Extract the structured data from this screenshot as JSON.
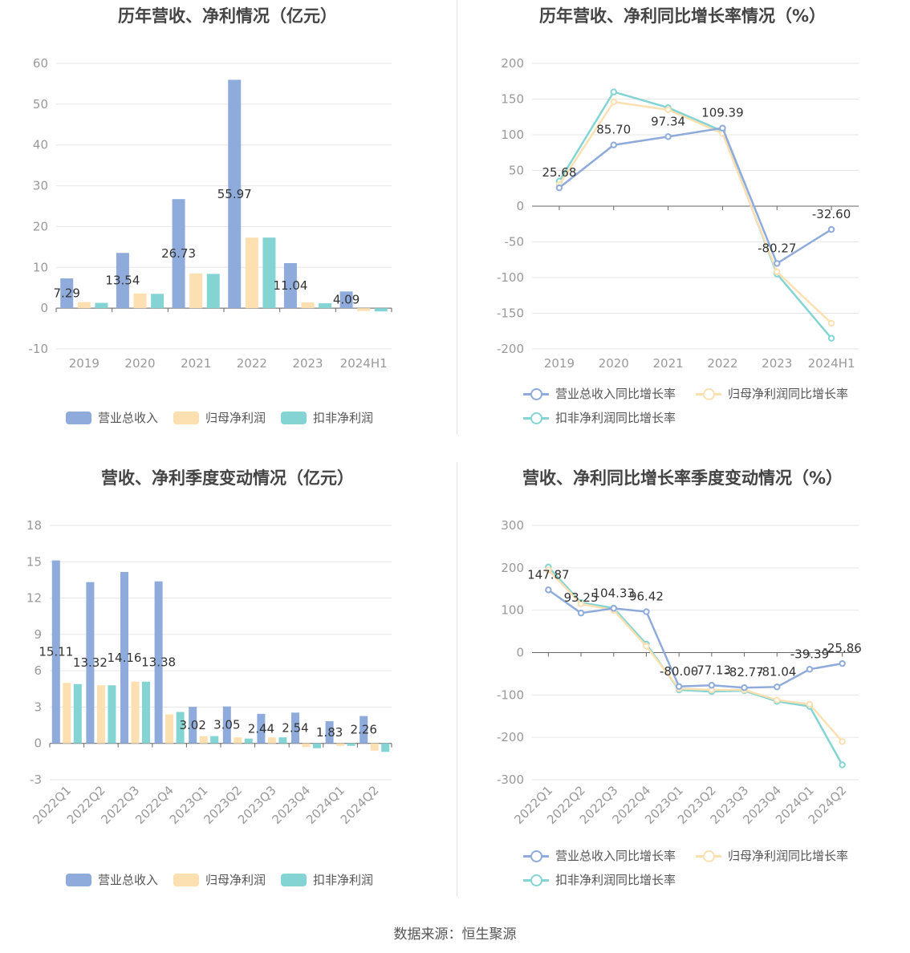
{
  "source_label": "数据来源：恒生聚源",
  "colors": {
    "revenue": "#8eabdb",
    "net_profit": "#fde0b1",
    "deducted_profit": "#85d4d4"
  },
  "chart_data": [
    {
      "type": "bar",
      "title": "历年营收、净利情况（亿元）",
      "categories": [
        "2019",
        "2020",
        "2021",
        "2022",
        "2023",
        "2024H1"
      ],
      "ylim": [
        -10,
        60
      ],
      "yticks": [
        60,
        50,
        40,
        30,
        20,
        10,
        0,
        -10
      ],
      "series": [
        {
          "name": "营业总收入",
          "values": [
            7.29,
            13.54,
            26.73,
            55.97,
            11.04,
            4.09
          ],
          "labels": [
            "7.29",
            "13.54",
            "26.73",
            "55.97",
            "11.04",
            "4.09"
          ]
        },
        {
          "name": "归母净利润",
          "values": [
            1.5,
            3.6,
            8.5,
            17.3,
            1.4,
            -0.7
          ]
        },
        {
          "name": "扣非净利润",
          "values": [
            1.3,
            3.5,
            8.4,
            17.3,
            1.2,
            -0.8
          ]
        }
      ],
      "legend": "bottom"
    },
    {
      "type": "line",
      "title": "历年营收、净利同比增长率情况（%）",
      "categories": [
        "2019",
        "2020",
        "2021",
        "2022",
        "2023",
        "2024H1"
      ],
      "ylim": [
        -200,
        200
      ],
      "yticks": [
        200,
        150,
        100,
        50,
        0,
        -50,
        -100,
        -150,
        -200
      ],
      "series": [
        {
          "name": "营业总收入同比增长率",
          "values": [
            25.68,
            85.7,
            97.34,
            109.39,
            -80.27,
            -32.6
          ],
          "labels": [
            "25.68",
            "85.70",
            "97.34",
            "109.39",
            "-80.27",
            "-32.60"
          ]
        },
        {
          "name": "归母净利润同比增长率",
          "values": [
            30,
            146,
            135,
            102,
            -92,
            -164
          ]
        },
        {
          "name": "扣非净利润同比增长率",
          "values": [
            35,
            160,
            138,
            105,
            -95,
            -185
          ]
        }
      ],
      "legend": "bottom"
    },
    {
      "type": "bar",
      "title": "营收、净利季度变动情况（亿元）",
      "categories": [
        "2022Q1",
        "2022Q2",
        "2022Q3",
        "2022Q4",
        "2023Q1",
        "2023Q2",
        "2023Q3",
        "2023Q4",
        "2024Q1",
        "2024Q2"
      ],
      "ylim": [
        -3,
        18
      ],
      "yticks": [
        18,
        15,
        12,
        9,
        6,
        3,
        0,
        -3
      ],
      "series": [
        {
          "name": "营业总收入",
          "values": [
            15.11,
            13.32,
            14.16,
            13.38,
            3.02,
            3.05,
            2.44,
            2.54,
            1.83,
            2.26
          ],
          "labels": [
            "15.11",
            "13.32",
            "14.16",
            "13.38",
            "3.02",
            "3.05",
            "2.44",
            "2.54",
            "1.83",
            "2.26"
          ]
        },
        {
          "name": "归母净利润",
          "values": [
            5.0,
            4.8,
            5.1,
            2.4,
            0.6,
            0.5,
            0.5,
            -0.3,
            -0.2,
            -0.6
          ]
        },
        {
          "name": "扣非净利润",
          "values": [
            4.9,
            4.8,
            5.1,
            2.6,
            0.6,
            0.4,
            0.5,
            -0.4,
            -0.2,
            -0.7
          ]
        }
      ],
      "legend": "bottom"
    },
    {
      "type": "line",
      "title": "营收、净利同比增长率季度变动情况（%）",
      "categories": [
        "2022Q1",
        "2022Q2",
        "2022Q3",
        "2022Q4",
        "2023Q1",
        "2023Q2",
        "2023Q3",
        "2023Q4",
        "2024Q1",
        "2024Q2"
      ],
      "ylim": [
        -300,
        300
      ],
      "yticks": [
        300,
        200,
        100,
        0,
        -100,
        -200,
        -300
      ],
      "series": [
        {
          "name": "营业总收入同比增长率",
          "values": [
            147.87,
            93.25,
            104.33,
            96.42,
            -80.0,
            -77.13,
            -82.77,
            -81.04,
            -39.39,
            -25.86
          ],
          "labels": [
            "147.87",
            "93.25",
            "104.33",
            "96.42",
            "-80.00",
            "-77.13",
            "-82.77",
            "-81.04",
            "-39.39",
            "-25.86"
          ]
        },
        {
          "name": "归母净利润同比增长率",
          "values": [
            195,
            115,
            100,
            15,
            -85,
            -88,
            -88,
            -112,
            -122,
            -210
          ]
        },
        {
          "name": "扣非净利润同比增长率",
          "values": [
            202,
            118,
            105,
            20,
            -88,
            -92,
            -90,
            -115,
            -127,
            -265
          ]
        }
      ],
      "legend": "bottom"
    }
  ]
}
